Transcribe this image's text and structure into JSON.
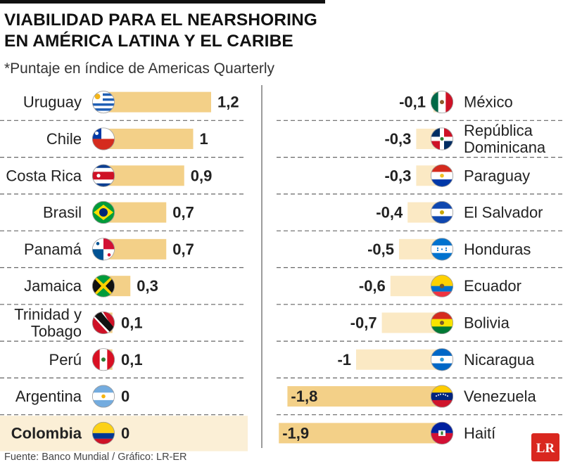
{
  "header": {
    "title_line1": "VIABILIDAD PARA EL NEARSHORING",
    "title_line2": "EN AMÉRICA LATINA Y EL CARIBE",
    "subtitle": "*Puntaje en índice de Americas Quarterly"
  },
  "footer": {
    "source": "Fuente: Banco Mundial / Gráfico: LR-ER",
    "logo_text": "LR"
  },
  "colors": {
    "bar": "#f3d088",
    "bar_light": "#fbe9c4",
    "highlight_bg": "#fbefd6",
    "divider": "#555555",
    "logo_red": "#d9271f"
  },
  "chart_data": {
    "type": "bar",
    "orientation": "horizontal",
    "panels": [
      {
        "side": "left",
        "categories": [
          "Uruguay",
          "Chile",
          "Costa Rica",
          "Brasil",
          "Panamá",
          "Jamaica",
          "Trinidad y Tobago",
          "Perú",
          "Argentina",
          "Colombia"
        ],
        "value_labels": [
          "1,2",
          "1",
          "0,9",
          "0,7",
          "0,7",
          "0,3",
          "0,1",
          "0,1",
          "0",
          "0"
        ],
        "values": [
          1.2,
          1.0,
          0.9,
          0.7,
          0.7,
          0.3,
          0.1,
          0.1,
          0.0,
          0.0
        ],
        "flags": [
          "uruguay",
          "chile",
          "costa-rica",
          "brazil",
          "panama",
          "jamaica",
          "trinidad-tobago",
          "peru",
          "argentina",
          "colombia"
        ],
        "highlight": "Colombia"
      },
      {
        "side": "right",
        "categories": [
          "México",
          "República Dominicana",
          "Paraguay",
          "El Salvador",
          "Honduras",
          "Ecuador",
          "Bolivia",
          "Nicaragua",
          "Venezuela",
          "Haití"
        ],
        "value_labels": [
          "-0,1",
          "-0,3",
          "-0,3",
          "-0,4",
          "-0,5",
          "-0,6",
          "-0,7",
          "-1",
          "-1,8",
          "-1,9"
        ],
        "values": [
          -0.1,
          -0.3,
          -0.3,
          -0.4,
          -0.5,
          -0.6,
          -0.7,
          -1.0,
          -1.8,
          -1.9
        ],
        "flags": [
          "mexico",
          "dominican-republic",
          "paraguay",
          "el-salvador",
          "honduras",
          "ecuador",
          "bolivia",
          "nicaragua",
          "venezuela",
          "haiti"
        ]
      }
    ]
  }
}
